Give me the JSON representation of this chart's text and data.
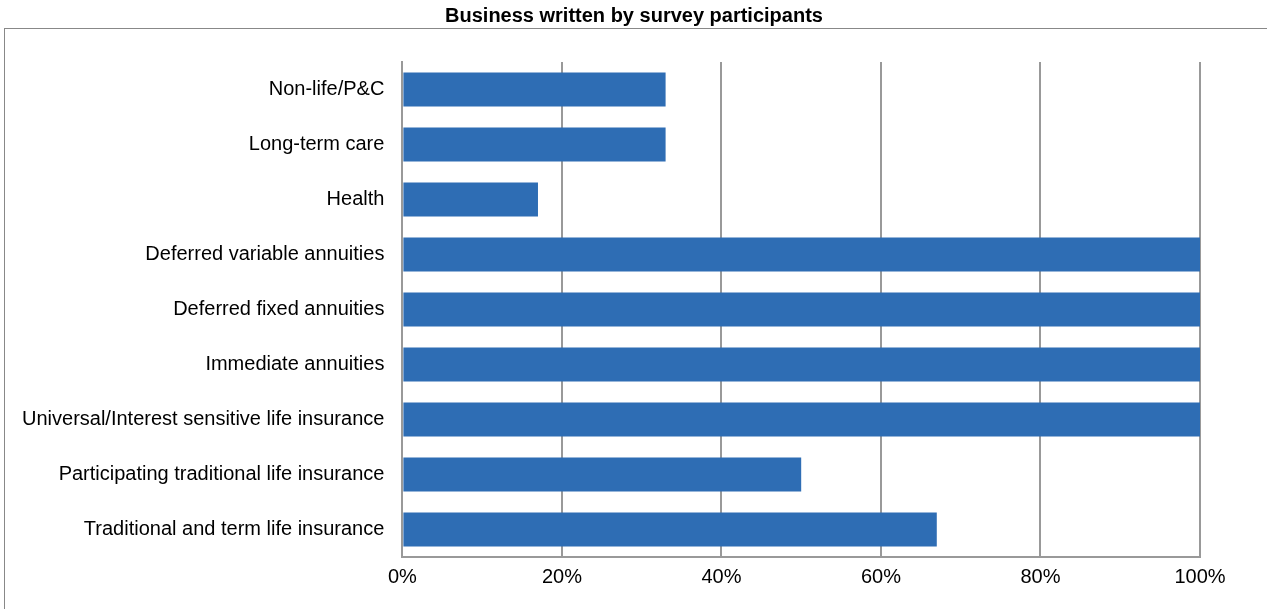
{
  "chart_data": {
    "type": "bar",
    "orientation": "horizontal",
    "title": "Business written by survey participants",
    "categories": [
      "Non-life/P&C",
      "Long-term care",
      "Health",
      "Deferred variable annuities",
      "Deferred fixed annuities",
      "Immediate annuities",
      "Universal/Interest sensitive life insurance",
      "Participating traditional life insurance",
      "Traditional and term life insurance"
    ],
    "values": [
      33,
      33,
      17,
      100,
      100,
      100,
      100,
      50,
      67
    ],
    "color": "#2e6db4",
    "xlim": [
      0,
      100
    ],
    "xticks": [
      {
        "value": 0,
        "label": "0%"
      },
      {
        "value": 20,
        "label": "20%"
      },
      {
        "value": 40,
        "label": "40%"
      },
      {
        "value": 60,
        "label": "60%"
      },
      {
        "value": 80,
        "label": "80%"
      },
      {
        "value": 100,
        "label": "100%"
      }
    ],
    "grid": "x"
  }
}
